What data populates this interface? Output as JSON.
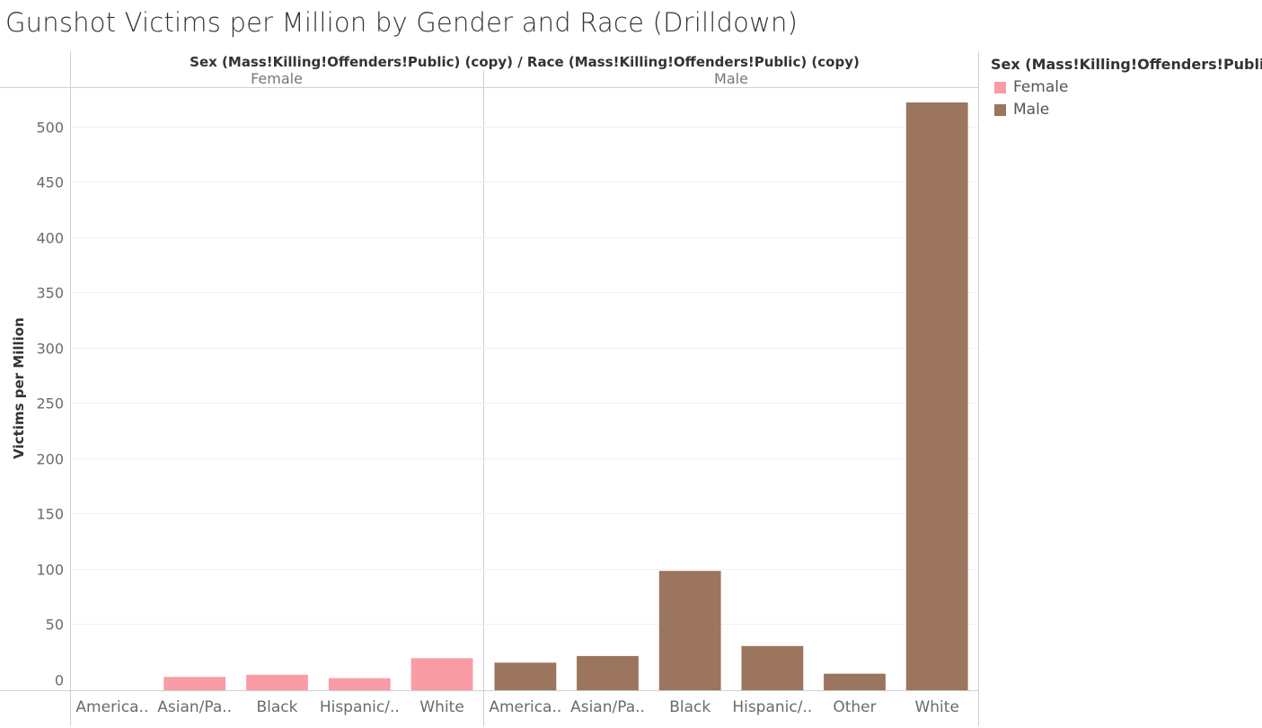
{
  "title": "Gunshot Victims per Million by Gender and Race (Drilldown)",
  "colors": {
    "Female": "#f99ca6",
    "Male": "#9b755d"
  },
  "legend": {
    "title": "Sex (Mass!Killing!Offenders!Public)",
    "items": [
      {
        "label": "Female",
        "color": "#f99ca6"
      },
      {
        "label": "Male",
        "color": "#9b755d"
      }
    ]
  },
  "chart_data": {
    "type": "bar",
    "title": "Gunshot Victims per Million by Gender and Race (Drilldown)",
    "header": "Sex (Mass!Killing!Offenders!Public) (copy)  /  Race (Mass!Killing!Offenders!Public) (copy)",
    "ylabel": "Victims per Million",
    "xlabel": "",
    "ylim": [
      -10,
      535
    ],
    "yticks": [
      0,
      50,
      100,
      150,
      200,
      250,
      300,
      350,
      400,
      450,
      500
    ],
    "grid": true,
    "legend_position": "right",
    "panes": [
      {
        "name": "Female",
        "categories": [
          "America..",
          "Asian/Pa..",
          "Black",
          "Hispanic/..",
          "White"
        ],
        "values": [
          0,
          2,
          4,
          1,
          19
        ]
      },
      {
        "name": "Male",
        "categories": [
          "America..",
          "Asian/Pa..",
          "Black",
          "Hispanic/..",
          "Other",
          "White"
        ],
        "values": [
          15,
          21,
          98,
          30,
          5,
          522
        ]
      }
    ]
  }
}
